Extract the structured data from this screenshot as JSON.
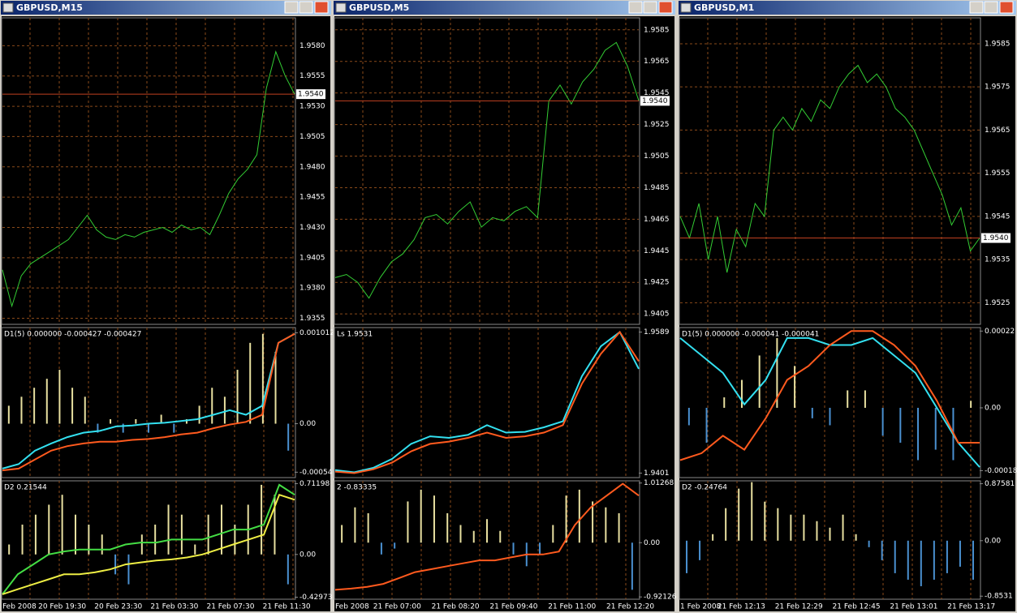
{
  "windows": [
    {
      "title": "GBPUSD,M15",
      "price": {
        "ylim": [
          1.935,
          1.9603
        ],
        "yticks": [
          {
            "value": 1.958,
            "label": "1.9580"
          },
          1.9555,
          {
            "value": 1.953,
            "label": "1.9530"
          },
          1.9505,
          {
            "value": 1.948,
            "label": "1.9480"
          },
          1.9455,
          {
            "value": 1.943,
            "label": "1.9430"
          },
          1.9405,
          {
            "value": 1.938,
            "label": "1.9380"
          },
          1.9355
        ],
        "current": {
          "value": 1.954,
          "label": "1.9540"
        },
        "color": "#33cc33",
        "values": [
          1.9395,
          1.9365,
          1.939,
          1.94,
          1.9405,
          1.941,
          1.9415,
          1.942,
          1.943,
          1.944,
          1.9428,
          1.9422,
          1.942,
          1.9424,
          1.9422,
          1.9426,
          1.9428,
          1.943,
          1.9426,
          1.9432,
          1.9428,
          1.943,
          1.9424,
          1.944,
          1.9458,
          1.947,
          1.9478,
          1.949,
          1.9545,
          1.9575,
          1.9555,
          1.954
        ]
      },
      "panels": [
        {
          "label": "D1(5) 0.000000 -0.000427 -0.000427",
          "ylim": [
            -0.0006,
            0.00107
          ],
          "yticks": [
            0.001012,
            {
              "value": 0,
              "label": "0.00"
            },
            -0.00054
          ],
          "histogram": [
            0.0002,
            0.0003,
            0.0004,
            0.0005,
            0.0006,
            0.0004,
            0.0003,
            -0.0001,
            5e-05,
            -0.0001,
            5e-05,
            -0.0001,
            0.0001,
            -0.0001,
            5e-05,
            0.0002,
            0.0004,
            0.0003,
            0.0006,
            0.0009,
            0.001,
            0.0008,
            -0.0003
          ],
          "lines": [
            {
              "color": "#33e0f0",
              "values": [
                -0.0005,
                -0.00045,
                -0.0003,
                -0.00022,
                -0.00015,
                -0.0001,
                -8e-05,
                -3e-05,
                -2e-05,
                0,
                1e-05,
                3e-05,
                5e-05,
                0.0001,
                0.00015,
                0.0001,
                0.0002,
                0.0009,
                0.001
              ]
            },
            {
              "color": "#ff5a1e",
              "values": [
                -0.00052,
                -0.0005,
                -0.0004,
                -0.0003,
                -0.00025,
                -0.00022,
                -0.0002,
                -0.0002,
                -0.00018,
                -0.00017,
                -0.00015,
                -0.00012,
                -0.0001,
                -5e-05,
                -1e-05,
                2e-05,
                0.0001,
                0.0009,
                0.001
              ]
            }
          ]
        },
        {
          "label": "D2 0.21544",
          "ylim": [
            -0.45,
            0.74
          ],
          "yticks": [
            0.71198,
            {
              "value": 0,
              "label": "0.00"
            },
            -0.42973
          ],
          "histogram": [
            0.1,
            0.3,
            0.4,
            0.5,
            0.6,
            0.4,
            0.3,
            0.2,
            -0.2,
            -0.3,
            0.2,
            0.3,
            0.5,
            0.4,
            0.1,
            0.4,
            0.5,
            0.3,
            0.5,
            0.7,
            0.6,
            -0.3
          ],
          "lines": [
            {
              "color": "#44dd44",
              "values": [
                -0.4,
                -0.2,
                -0.1,
                0,
                0.03,
                0.05,
                0.05,
                0.05,
                0.1,
                0.12,
                0.12,
                0.15,
                0.15,
                0.15,
                0.2,
                0.25,
                0.25,
                0.3,
                0.7,
                0.6
              ]
            },
            {
              "color": "#eeee44",
              "values": [
                -0.4,
                -0.35,
                -0.3,
                -0.25,
                -0.2,
                -0.2,
                -0.18,
                -0.15,
                -0.1,
                -0.08,
                -0.06,
                -0.05,
                -0.03,
                0,
                0.05,
                0.1,
                0.15,
                0.2,
                0.6,
                0.55
              ]
            }
          ]
        }
      ],
      "time_labels": [
        "Feb 2008",
        "20 Feb 19:30",
        "20 Feb 23:30",
        "21 Feb 03:30",
        "21 Feb 07:30",
        "21 Feb 11:30"
      ]
    },
    {
      "title": "GBPUSD,M5",
      "price": {
        "ylim": [
          1.93984,
          1.95926
        ],
        "yticks": [
          1.9585,
          1.9565,
          1.9545,
          1.9525,
          1.9505,
          1.9485,
          1.9465,
          1.9445,
          1.9425,
          1.9405
        ],
        "current": {
          "value": 1.954,
          "label": "1.9540"
        },
        "color": "#33cc33",
        "values": [
          1.9428,
          1.943,
          1.9425,
          1.9415,
          1.9428,
          1.9438,
          1.9443,
          1.9452,
          1.9466,
          1.9468,
          1.9462,
          1.947,
          1.9476,
          1.946,
          1.9466,
          1.9464,
          1.947,
          1.9473,
          1.9466,
          1.954,
          1.955,
          1.9538,
          1.9552,
          1.956,
          1.9572,
          1.9577,
          1.9562,
          1.954
        ]
      },
      "panels": [
        {
          "label": "Ls 1.9531",
          "ylim": [
            1.9395,
            1.9595
          ],
          "yticks": [
            1.9589,
            1.9401
          ],
          "lines": [
            {
              "color": "#33e0f0",
              "values": [
                1.9405,
                1.9402,
                1.9408,
                1.942,
                1.944,
                1.945,
                1.9448,
                1.9452,
                1.9465,
                1.9455,
                1.9456,
                1.9462,
                1.947,
                1.953,
                1.957,
                1.9589,
                1.954
              ]
            },
            {
              "color": "#ff5a1e",
              "values": [
                1.9403,
                1.9401,
                1.9406,
                1.9415,
                1.943,
                1.944,
                1.9443,
                1.9448,
                1.9455,
                1.9448,
                1.945,
                1.9455,
                1.9465,
                1.952,
                1.956,
                1.9589,
                1.955
              ]
            }
          ]
        },
        {
          "label": "2 -0.83335",
          "ylim": [
            -0.96,
            1.05
          ],
          "yticks": [
            1.01268,
            {
              "value": 0,
              "label": "0.00"
            },
            -0.92126
          ],
          "histogram": [
            0.3,
            0.6,
            0.5,
            -0.2,
            -0.1,
            0.7,
            0.9,
            0.8,
            0.5,
            0.3,
            0.2,
            0.4,
            0.2,
            -0.2,
            -0.4,
            -0.2,
            0.3,
            0.8,
            0.9,
            0.7,
            0.6,
            0.5,
            -0.8
          ],
          "lines": [
            {
              "color": "#ff5a1e",
              "values": [
                -0.8,
                -0.78,
                -0.75,
                -0.7,
                -0.6,
                -0.5,
                -0.45,
                -0.4,
                -0.35,
                -0.3,
                -0.3,
                -0.25,
                -0.2,
                -0.2,
                -0.15,
                0.3,
                0.6,
                0.8,
                1,
                0.8
              ]
            }
          ]
        }
      ],
      "time_labels": [
        "Feb 2008",
        "21 Feb 07:00",
        "21 Feb 08:20",
        "21 Feb 09:40",
        "21 Feb 11:00",
        "21 Feb 12:20"
      ]
    },
    {
      "title": "GBPUSD,M1",
      "price": {
        "ylim": [
          1.952,
          1.9591
        ],
        "yticks": [
          1.9585,
          1.9575,
          1.9565,
          1.9555,
          1.9545,
          1.9535,
          1.9525
        ],
        "current": {
          "value": 1.954,
          "label": "1.9540"
        },
        "color": "#33cc33",
        "values": [
          1.9545,
          1.954,
          1.9548,
          1.9535,
          1.9545,
          1.9532,
          1.9542,
          1.9538,
          1.9548,
          1.9545,
          1.9565,
          1.9568,
          1.9565,
          1.957,
          1.9567,
          1.9572,
          1.957,
          1.9575,
          1.9578,
          1.958,
          1.9576,
          1.9578,
          1.9575,
          1.957,
          1.9568,
          1.9565,
          1.956,
          1.9555,
          1.955,
          1.9543,
          1.9547,
          1.9537,
          1.954
        ]
      },
      "panels": [
        {
          "label": "D1(5) 0.000000 -0.000041 -0.000041",
          "ylim": [
            -0.0002,
            0.00023
          ],
          "yticks": [
            0.00022,
            {
              "value": 0,
              "label": "0.00"
            },
            -0.00018
          ],
          "histogram": [
            -5e-05,
            -0.0001,
            3e-05,
            8e-05,
            0.00015,
            0.0002,
            0.00012,
            -3e-05,
            -5e-05,
            5e-05,
            5e-05,
            -8e-05,
            -0.0001,
            -0.00015,
            -0.00012,
            -0.00015,
            2e-05
          ],
          "lines": [
            {
              "color": "#33e0f0",
              "values": [
                0.0002,
                0.00015,
                0.0001,
                1e-05,
                8e-05,
                0.0002,
                0.0002,
                0.00018,
                0.00018,
                0.0002,
                0.00015,
                0.0001,
                0,
                -0.0001,
                -0.00017
              ]
            },
            {
              "color": "#ff5a1e",
              "values": [
                -0.00015,
                -0.00013,
                -8e-05,
                -0.00012,
                -3e-05,
                8e-05,
                0.00012,
                0.00018,
                0.00022,
                0.00022,
                0.00018,
                0.00012,
                2e-05,
                -0.0001,
                -0.0001
              ]
            }
          ]
        },
        {
          "label": "D2 -0.24764",
          "ylim": [
            -0.9,
            0.92
          ],
          "yticks": [
            0.87581,
            {
              "value": 0,
              "label": "0.00"
            },
            -0.8531
          ],
          "histogram": [
            -0.5,
            -0.3,
            0.1,
            0.5,
            0.8,
            0.9,
            0.6,
            0.5,
            0.4,
            0.4,
            0.3,
            0.2,
            0.4,
            0.1,
            -0.1,
            -0.3,
            -0.5,
            -0.6,
            -0.7,
            -0.6,
            -0.5,
            -0.4,
            -0.6
          ]
        }
      ],
      "time_labels": [
        "1 Feb 2008",
        "21 Feb 12:13",
        "21 Feb 12:29",
        "21 Feb 12:45",
        "21 Feb 13:01",
        "21 Feb 13:17"
      ]
    }
  ]
}
